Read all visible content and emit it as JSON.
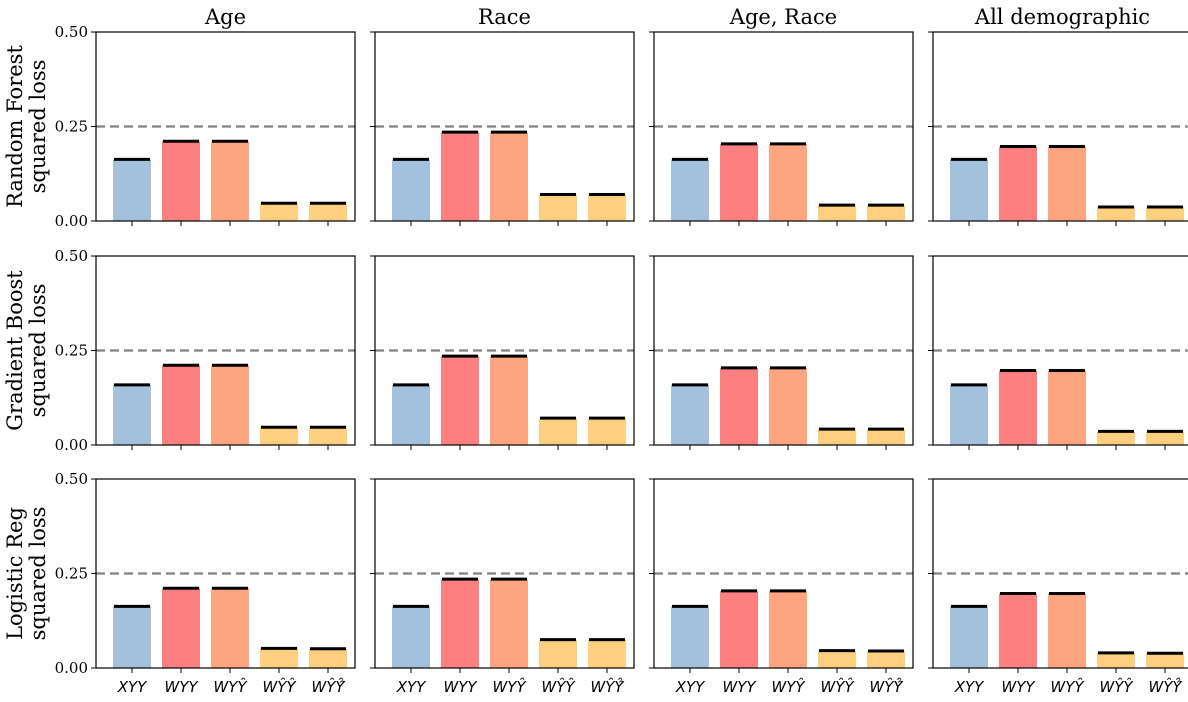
{
  "figure": {
    "column_titles": [
      "Age",
      "Race",
      "Age, Race",
      "All demographic"
    ],
    "row_labels": [
      [
        "Random Forest",
        "squared loss"
      ],
      [
        "Gradient Boost",
        "squared loss"
      ],
      [
        "Logistic Reg",
        "squared loss"
      ]
    ],
    "y_ticks": [
      "0.00",
      "0.25",
      "0.50"
    ],
    "categories": [
      "XYY",
      "WYY",
      "WYŶ",
      "WŶŶ",
      "WŶŶ̂"
    ]
  },
  "colors": {
    "bars": [
      "#a3c1dc",
      "#fe7f7f",
      "#fea580",
      "#fecf7f",
      "#fecf7f"
    ],
    "reference_line": "#808080",
    "error_bar": "#000000"
  },
  "chart_data": {
    "type": "bar",
    "layout": "grid 3 rows x 4 columns",
    "categories": [
      "XYY",
      "WYY",
      "WYŶ",
      "WŶŶ",
      "WŶŶ̂"
    ],
    "ylim": [
      0,
      0.5
    ],
    "reference_line_y": 0.25,
    "reference_line_style": "dashed",
    "grid": false,
    "panels": [
      {
        "row": "Random Forest squared loss",
        "column": "Age",
        "values": [
          0.163,
          0.211,
          0.211,
          0.047,
          0.047
        ]
      },
      {
        "row": "Random Forest squared loss",
        "column": "Race",
        "values": [
          0.163,
          0.235,
          0.235,
          0.07,
          0.07
        ]
      },
      {
        "row": "Random Forest squared loss",
        "column": "Age, Race",
        "values": [
          0.163,
          0.204,
          0.204,
          0.042,
          0.042
        ]
      },
      {
        "row": "Random Forest squared loss",
        "column": "All demographic",
        "values": [
          0.163,
          0.197,
          0.197,
          0.037,
          0.037
        ]
      },
      {
        "row": "Gradient Boost squared loss",
        "column": "Age",
        "values": [
          0.159,
          0.211,
          0.211,
          0.047,
          0.047
        ]
      },
      {
        "row": "Gradient Boost squared loss",
        "column": "Race",
        "values": [
          0.159,
          0.235,
          0.235,
          0.071,
          0.071
        ]
      },
      {
        "row": "Gradient Boost squared loss",
        "column": "Age, Race",
        "values": [
          0.159,
          0.204,
          0.204,
          0.042,
          0.042
        ]
      },
      {
        "row": "Gradient Boost squared loss",
        "column": "All demographic",
        "values": [
          0.159,
          0.197,
          0.197,
          0.036,
          0.036
        ]
      },
      {
        "row": "Logistic Reg squared loss",
        "column": "Age",
        "values": [
          0.163,
          0.211,
          0.211,
          0.052,
          0.051
        ]
      },
      {
        "row": "Logistic Reg squared loss",
        "column": "Race",
        "values": [
          0.163,
          0.235,
          0.235,
          0.075,
          0.075
        ]
      },
      {
        "row": "Logistic Reg squared loss",
        "column": "Age, Race",
        "values": [
          0.163,
          0.204,
          0.204,
          0.046,
          0.045
        ]
      },
      {
        "row": "Logistic Reg squared loss",
        "column": "All demographic",
        "values": [
          0.163,
          0.197,
          0.197,
          0.04,
          0.039
        ]
      }
    ]
  }
}
